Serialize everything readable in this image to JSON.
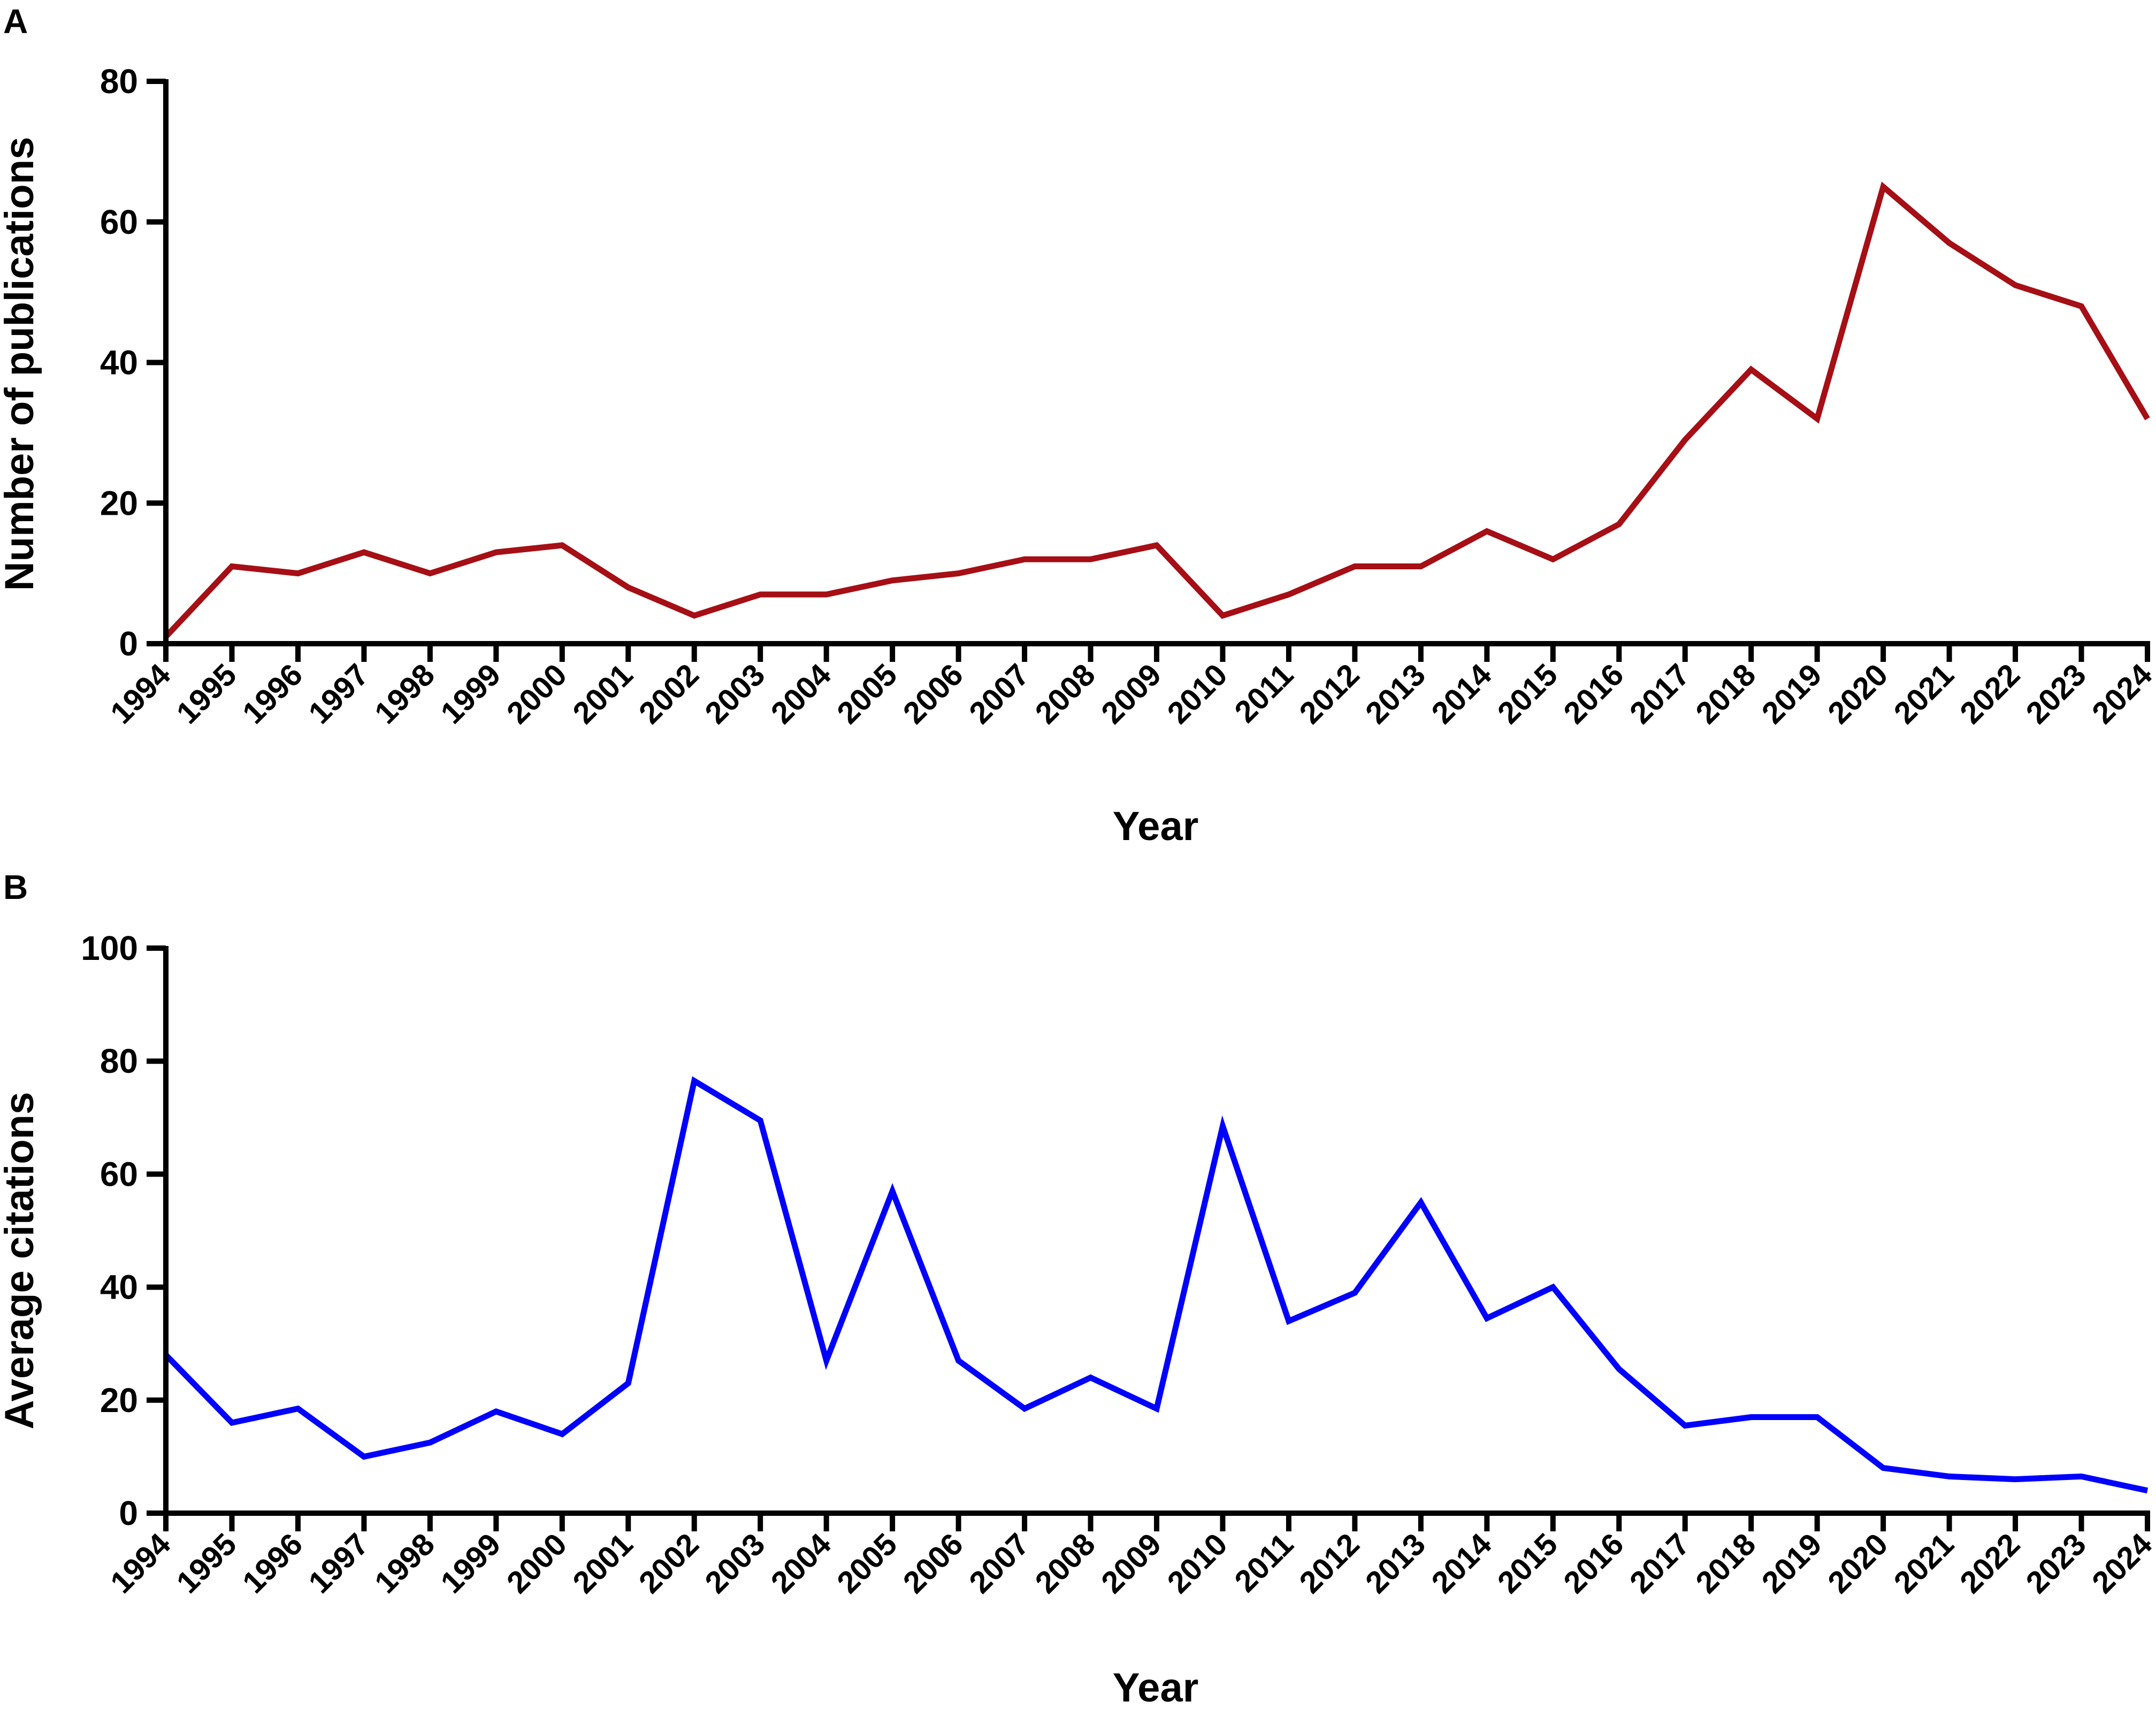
{
  "figure": {
    "colors": {
      "panel_a_line": "#A50F15",
      "panel_b_line": "#0000FF",
      "axes": "#000000"
    }
  },
  "chart_data": [
    {
      "panel_label": "A",
      "type": "line",
      "xlabel": "Year",
      "ylabel": "Number of publications",
      "ylim": [
        0,
        80
      ],
      "yticks": [
        "0",
        "20",
        "40",
        "60",
        "80"
      ],
      "grid": false,
      "categories": [
        "1994",
        "1995",
        "1996",
        "1997",
        "1998",
        "1999",
        "2000",
        "2001",
        "2002",
        "2003",
        "2004",
        "2005",
        "2006",
        "2007",
        "2008",
        "2009",
        "2010",
        "2011",
        "2012",
        "2013",
        "2014",
        "2015",
        "2016",
        "2017",
        "2018",
        "2019",
        "2020",
        "2021",
        "2022",
        "2023",
        "2024"
      ],
      "series": [
        {
          "values": [
            1,
            11,
            10,
            13,
            10,
            13,
            14,
            8,
            4,
            7,
            7,
            9,
            10,
            12,
            12,
            14,
            4,
            7,
            11,
            11,
            16,
            12,
            17,
            29,
            39,
            32,
            65,
            57,
            51,
            48,
            32
          ]
        }
      ]
    },
    {
      "panel_label": "B",
      "type": "line",
      "xlabel": "Year",
      "ylabel": "Average citations",
      "ylim": [
        0,
        100
      ],
      "yticks": [
        "0",
        "20",
        "40",
        "60",
        "80",
        "100"
      ],
      "grid": false,
      "categories": [
        "1994",
        "1995",
        "1996",
        "1997",
        "1998",
        "1999",
        "2000",
        "2001",
        "2002",
        "2003",
        "2004",
        "2005",
        "2006",
        "2007",
        "2008",
        "2009",
        "2010",
        "2011",
        "2012",
        "2013",
        "2014",
        "2015",
        "2016",
        "2017",
        "2018",
        "2019",
        "2020",
        "2021",
        "2022",
        "2023",
        "2024"
      ],
      "series": [
        {
          "values": [
            28,
            16,
            18.5,
            10,
            12.5,
            18,
            14,
            23,
            76.5,
            69.5,
            27,
            57,
            27,
            18.5,
            24,
            18.5,
            68.5,
            34,
            39,
            55,
            34.5,
            40,
            25.5,
            15.5,
            17,
            17,
            8,
            6.5,
            6,
            6.5,
            4
          ]
        }
      ]
    }
  ]
}
